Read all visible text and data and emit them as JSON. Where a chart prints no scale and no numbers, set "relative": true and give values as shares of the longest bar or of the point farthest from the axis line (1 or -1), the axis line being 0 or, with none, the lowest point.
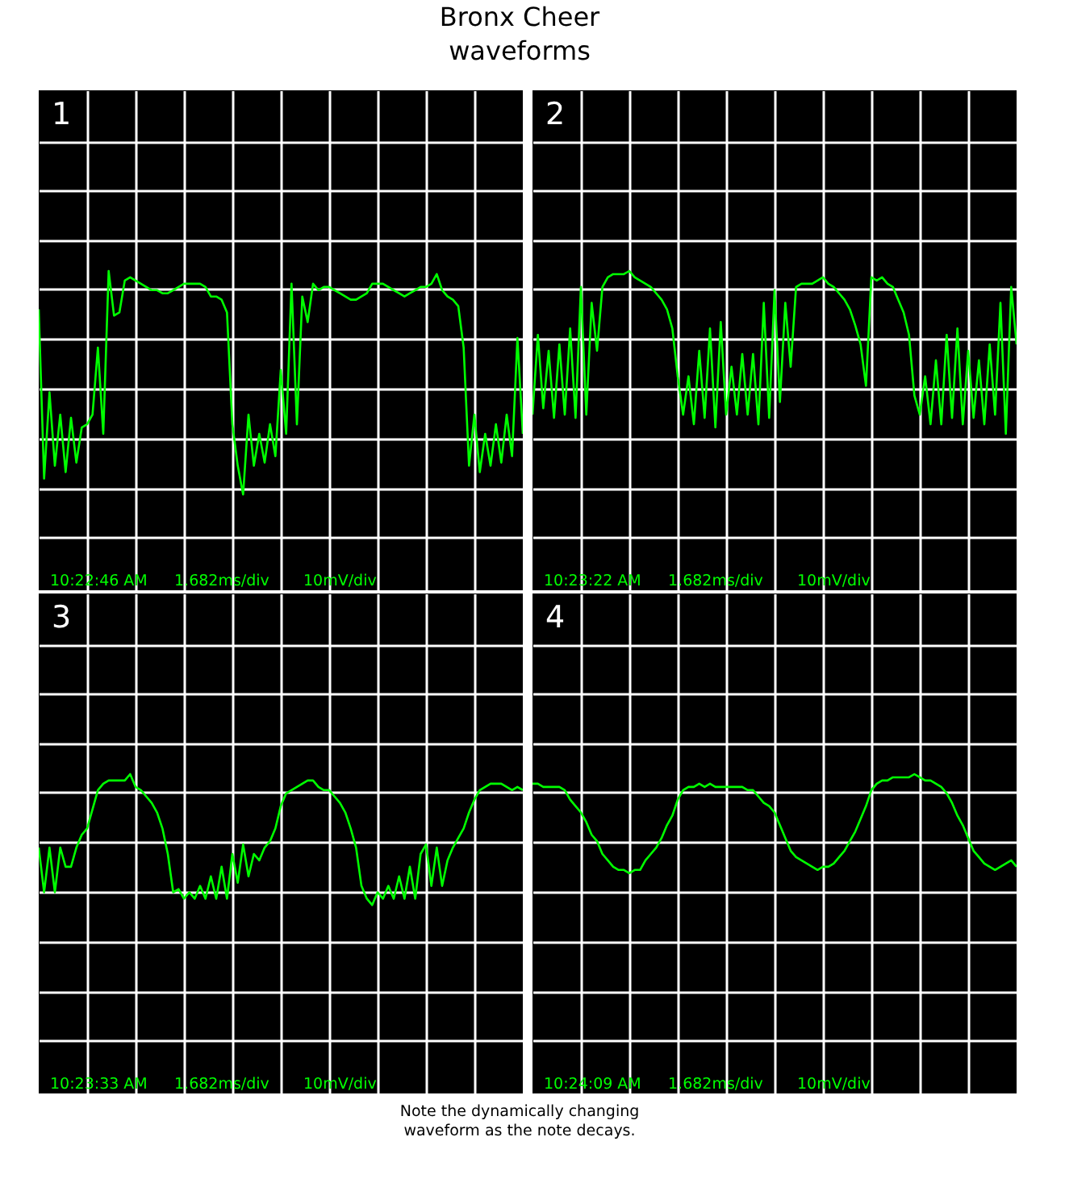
{
  "chart_data": [
    {
      "type": "line",
      "title": "Bronx Cheer waveforms",
      "subtitle": "1",
      "relative": true,
      "tick_labels": false,
      "grid": true,
      "annotations": [
        "10:22:46 AM",
        "1.682ms/div",
        "10mV/div"
      ],
      "categories": [
        null,
        null,
        null,
        null,
        null,
        null,
        null,
        null,
        null,
        null,
        null,
        null,
        null,
        null,
        null,
        null,
        null,
        null,
        null,
        null,
        null,
        null,
        null,
        null,
        null,
        null,
        null,
        null,
        null,
        null,
        null,
        null,
        null,
        null,
        null,
        null,
        null,
        null,
        null,
        null,
        null,
        null,
        null,
        null,
        null,
        null,
        null,
        null,
        null,
        null,
        null,
        null,
        null,
        null,
        null,
        null,
        null,
        null,
        null,
        null,
        null,
        null,
        null,
        null,
        null,
        null,
        null,
        null,
        null,
        null,
        null,
        null,
        null,
        null,
        null,
        null,
        null,
        null,
        null,
        null,
        null,
        null,
        null,
        null,
        null,
        null,
        null,
        null,
        null,
        null,
        null
      ],
      "series": [
        {
          "color": "#00ff00",
          "values": [
            0.88,
            0.35,
            0.62,
            0.39,
            0.55,
            0.37,
            0.54,
            0.4,
            0.51,
            0.52,
            0.55,
            0.76,
            0.49,
            1.0,
            0.86,
            0.87,
            0.97,
            0.98,
            0.97,
            0.96,
            0.95,
            0.94,
            0.94,
            0.93,
            0.93,
            0.94,
            0.95,
            0.96,
            0.96,
            0.96,
            0.96,
            0.95,
            0.92,
            0.92,
            0.91,
            0.87,
            0.52,
            0.39,
            0.3,
            0.55,
            0.39,
            0.49,
            0.4,
            0.52,
            0.42,
            0.69,
            0.49,
            0.96,
            0.52,
            0.92,
            0.84,
            0.96,
            0.94,
            0.95,
            0.95,
            0.94,
            0.93,
            0.92,
            0.91,
            0.91,
            0.92,
            0.93,
            0.96,
            0.96,
            0.96,
            0.95,
            0.94,
            0.93,
            0.92,
            0.93,
            0.94,
            0.95,
            0.95,
            0.96,
            0.99,
            0.94,
            0.92,
            0.91,
            0.89,
            0.76,
            0.39,
            0.55,
            0.37,
            0.49,
            0.39,
            0.52,
            0.4,
            0.55,
            0.42,
            0.79,
            0.49
          ]
        }
      ]
    },
    {
      "type": "line",
      "subtitle": "2",
      "relative": true,
      "tick_labels": false,
      "grid": true,
      "annotations": [
        "10:23:22 AM",
        "1.682ms/div",
        "10mV/div"
      ],
      "categories": [
        null,
        null,
        null,
        null,
        null,
        null,
        null,
        null,
        null,
        null,
        null,
        null,
        null,
        null,
        null,
        null,
        null,
        null,
        null,
        null,
        null,
        null,
        null,
        null,
        null,
        null,
        null,
        null,
        null,
        null,
        null,
        null,
        null,
        null,
        null,
        null,
        null,
        null,
        null,
        null,
        null,
        null,
        null,
        null,
        null,
        null,
        null,
        null,
        null,
        null,
        null,
        null,
        null,
        null,
        null,
        null,
        null,
        null,
        null,
        null,
        null,
        null,
        null,
        null,
        null,
        null,
        null,
        null,
        null,
        null,
        null,
        null,
        null,
        null,
        null,
        null,
        null,
        null,
        null,
        null,
        null,
        null,
        null,
        null,
        null,
        null,
        null,
        null,
        null,
        null,
        null
      ],
      "series": [
        {
          "color": "#00ff00",
          "values": [
            0.55,
            0.8,
            0.57,
            0.75,
            0.54,
            0.77,
            0.55,
            0.82,
            0.54,
            0.95,
            0.55,
            0.9,
            0.75,
            0.95,
            0.98,
            0.99,
            0.99,
            0.99,
            1.0,
            0.98,
            0.97,
            0.96,
            0.95,
            0.93,
            0.91,
            0.88,
            0.82,
            0.67,
            0.55,
            0.67,
            0.52,
            0.75,
            0.54,
            0.82,
            0.51,
            0.84,
            0.55,
            0.7,
            0.55,
            0.74,
            0.55,
            0.74,
            0.52,
            0.9,
            0.54,
            0.94,
            0.59,
            0.9,
            0.7,
            0.95,
            0.96,
            0.96,
            0.96,
            0.97,
            0.98,
            0.96,
            0.95,
            0.93,
            0.91,
            0.88,
            0.83,
            0.77,
            0.64,
            0.98,
            0.97,
            0.98,
            0.96,
            0.95,
            0.91,
            0.87,
            0.8,
            0.61,
            0.55,
            0.67,
            0.52,
            0.72,
            0.52,
            0.8,
            0.54,
            0.82,
            0.52,
            0.75,
            0.54,
            0.72,
            0.52,
            0.77,
            0.55,
            0.9,
            0.49,
            0.95,
            0.77
          ]
        }
      ]
    },
    {
      "type": "line",
      "subtitle": "3",
      "relative": true,
      "tick_labels": false,
      "grid": true,
      "annotations": [
        "10:23:33 AM",
        "1.682ms/div",
        "10mV/div"
      ],
      "categories": [
        null,
        null,
        null,
        null,
        null,
        null,
        null,
        null,
        null,
        null,
        null,
        null,
        null,
        null,
        null,
        null,
        null,
        null,
        null,
        null,
        null,
        null,
        null,
        null,
        null,
        null,
        null,
        null,
        null,
        null,
        null,
        null,
        null,
        null,
        null,
        null,
        null,
        null,
        null,
        null,
        null,
        null,
        null,
        null,
        null,
        null,
        null,
        null,
        null,
        null,
        null,
        null,
        null,
        null,
        null,
        null,
        null,
        null,
        null,
        null,
        null,
        null,
        null,
        null,
        null,
        null,
        null,
        null,
        null,
        null,
        null,
        null,
        null,
        null,
        null,
        null,
        null,
        null,
        null,
        null,
        null,
        null,
        null,
        null,
        null,
        null,
        null,
        null,
        null,
        null,
        null
      ],
      "series": [
        {
          "color": "#00ff00",
          "values": [
            0.77,
            0.63,
            0.77,
            0.63,
            0.77,
            0.71,
            0.71,
            0.77,
            0.81,
            0.83,
            0.89,
            0.95,
            0.97,
            0.98,
            0.98,
            0.98,
            0.98,
            1.0,
            0.96,
            0.95,
            0.93,
            0.91,
            0.88,
            0.83,
            0.75,
            0.63,
            0.64,
            0.61,
            0.63,
            0.61,
            0.65,
            0.61,
            0.68,
            0.61,
            0.71,
            0.61,
            0.75,
            0.66,
            0.78,
            0.68,
            0.75,
            0.73,
            0.77,
            0.79,
            0.83,
            0.9,
            0.94,
            0.95,
            0.96,
            0.97,
            0.98,
            0.98,
            0.96,
            0.95,
            0.95,
            0.93,
            0.91,
            0.88,
            0.83,
            0.77,
            0.65,
            0.61,
            0.59,
            0.63,
            0.61,
            0.65,
            0.61,
            0.68,
            0.61,
            0.71,
            0.61,
            0.75,
            0.78,
            0.65,
            0.77,
            0.65,
            0.73,
            0.77,
            0.8,
            0.83,
            0.88,
            0.92,
            0.95,
            0.96,
            0.97,
            0.97,
            0.97,
            0.96,
            0.95,
            0.96,
            0.95
          ]
        }
      ]
    },
    {
      "type": "line",
      "subtitle": "4",
      "relative": true,
      "tick_labels": false,
      "grid": true,
      "annotations": [
        "10:24:09 AM",
        "1.682ms/div",
        "10mV/div",
        "Note the dynamically changing waveform as the note decays."
      ],
      "categories": [
        null,
        null,
        null,
        null,
        null,
        null,
        null,
        null,
        null,
        null,
        null,
        null,
        null,
        null,
        null,
        null,
        null,
        null,
        null,
        null,
        null,
        null,
        null,
        null,
        null,
        null,
        null,
        null,
        null,
        null,
        null,
        null,
        null,
        null,
        null,
        null,
        null,
        null,
        null,
        null,
        null,
        null,
        null,
        null,
        null,
        null,
        null,
        null,
        null,
        null,
        null,
        null,
        null,
        null,
        null,
        null,
        null,
        null,
        null,
        null,
        null,
        null,
        null,
        null,
        null,
        null,
        null,
        null,
        null,
        null,
        null,
        null,
        null,
        null,
        null,
        null,
        null,
        null,
        null,
        null,
        null,
        null,
        null,
        null,
        null,
        null,
        null,
        null,
        null,
        null,
        null
      ],
      "series": [
        {
          "color": "#00ff00",
          "values": [
            0.97,
            0.97,
            0.96,
            0.96,
            0.96,
            0.96,
            0.95,
            0.92,
            0.9,
            0.88,
            0.85,
            0.81,
            0.79,
            0.75,
            0.73,
            0.71,
            0.7,
            0.7,
            0.69,
            0.7,
            0.7,
            0.73,
            0.75,
            0.77,
            0.8,
            0.84,
            0.87,
            0.92,
            0.95,
            0.96,
            0.96,
            0.97,
            0.96,
            0.97,
            0.96,
            0.96,
            0.96,
            0.96,
            0.96,
            0.96,
            0.95,
            0.95,
            0.93,
            0.91,
            0.9,
            0.88,
            0.84,
            0.8,
            0.76,
            0.74,
            0.73,
            0.72,
            0.71,
            0.7,
            0.71,
            0.71,
            0.72,
            0.74,
            0.76,
            0.79,
            0.82,
            0.86,
            0.9,
            0.95,
            0.97,
            0.98,
            0.98,
            0.99,
            0.99,
            0.99,
            0.99,
            1.0,
            0.99,
            0.98,
            0.98,
            0.97,
            0.96,
            0.94,
            0.91,
            0.87,
            0.84,
            0.8,
            0.76,
            0.74,
            0.72,
            0.71,
            0.7,
            0.71,
            0.72,
            0.73,
            0.71
          ]
        }
      ]
    }
  ]
}
